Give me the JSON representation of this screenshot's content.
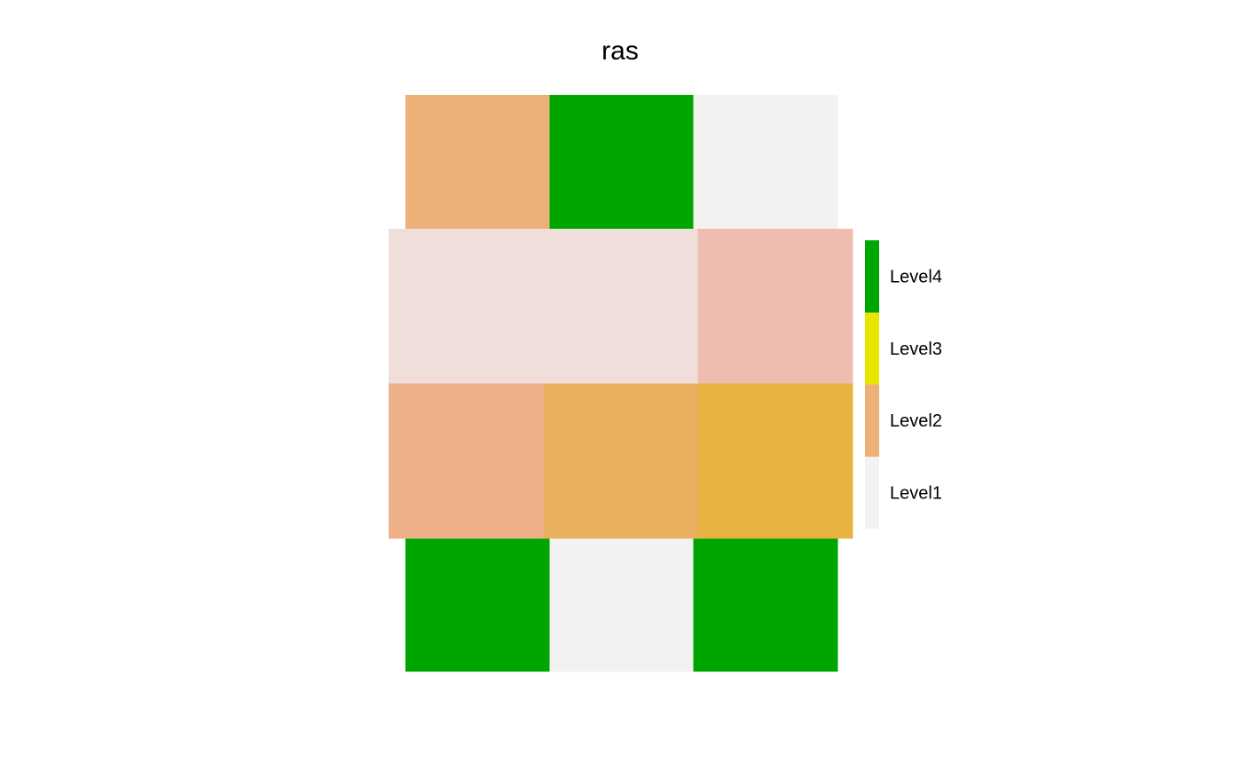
{
  "chart_data": {
    "type": "heatmap",
    "title": "ras",
    "xlabel": "",
    "ylabel": "",
    "grid": false,
    "legend_position": "right",
    "legend": [
      {
        "label": "Level4",
        "color": "#00A600"
      },
      {
        "label": "Level3",
        "color": "#E6E600"
      },
      {
        "label": "Level2",
        "color": "#ECB176"
      },
      {
        "label": "Level1",
        "color": "#F2F2F2"
      }
    ],
    "layers": [
      {
        "name": "categorical",
        "cols": 3,
        "rows": 4,
        "levels": [
          [
            "Level2",
            "Level4",
            "Level1"
          ],
          [
            "Level2",
            "Level1",
            "Level3"
          ],
          [
            "Level1",
            "Level3",
            "Level2"
          ],
          [
            "Level4",
            "Level1",
            "Level4"
          ]
        ],
        "colors": [
          [
            "#ECB176",
            "#00A600",
            "#F2F2F2"
          ],
          [
            "#ECB176",
            "#F2F2F2",
            "#E6E600"
          ],
          [
            "#F2F2F2",
            "#E6E600",
            "#ECB176"
          ],
          [
            "#00A600",
            "#F2F2F2",
            "#00A600"
          ]
        ]
      },
      {
        "name": "overlay",
        "opacity": 0.65,
        "cols": 3,
        "rows": 2,
        "colors": [
          [
            "#F0DEDB",
            "#F0DEDB",
            "#EFBDAF"
          ],
          [
            "#EEB088",
            "#EAB05F",
            "#E8B340"
          ]
        ]
      }
    ]
  }
}
